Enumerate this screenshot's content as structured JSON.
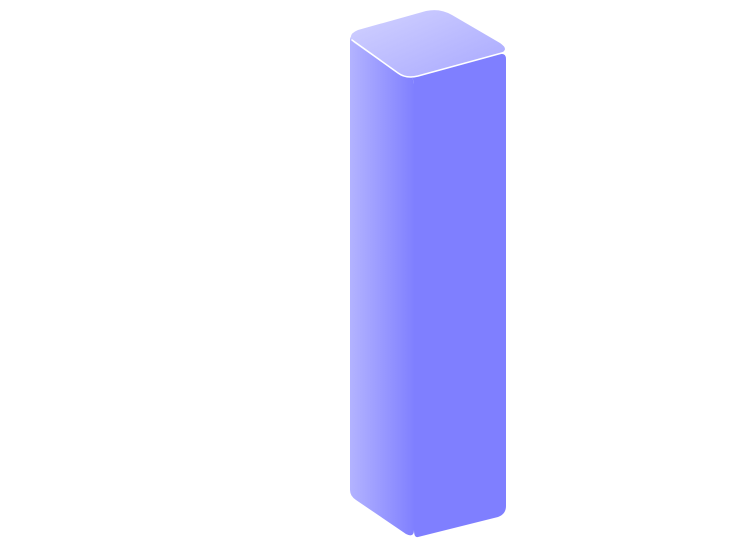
{
  "illustration": {
    "subject": "isometric-bar-3d",
    "colors": {
      "background": "#ffffff",
      "front_face_light": "#b3b3ff",
      "front_face_dark": "#8080ff",
      "side_face": "#7f7fff",
      "top_face_light": "#d2d2ff",
      "top_face_dark": "#a8a8ff",
      "top_highlight": "#ffffff"
    }
  }
}
